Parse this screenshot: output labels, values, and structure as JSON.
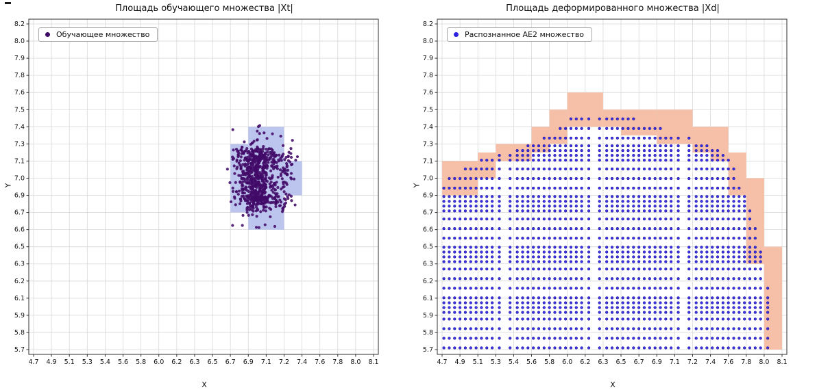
{
  "figure": {
    "background": "#ffffff"
  },
  "chart_data": [
    {
      "type": "scatter",
      "title": "Площадь обучающего множества |Xt|",
      "xlabel": "X",
      "ylabel": "Y",
      "grid": true,
      "legend": {
        "label": "Обучающее множество",
        "position": "upper left"
      },
      "colors": {
        "points": "#420a68",
        "cells": "#bcc5ee",
        "grid": "#d8d8d8",
        "axis": "#2f2f2f"
      },
      "xlim": [
        4.7,
        8.1
      ],
      "ylim": [
        5.7,
        8.2
      ],
      "x_tick_labels": [
        "4.7",
        "4.9",
        "5.1",
        "5.3",
        "5.4",
        "5.6",
        "5.8",
        "6.0",
        "6.2",
        "6.3",
        "6.5",
        "6.7",
        "6.9",
        "7.1",
        "7.2",
        "7.4",
        "7.6",
        "7.8",
        "8.0",
        "8.1"
      ],
      "y_tick_labels": [
        "5.7",
        "5.8",
        "5.9",
        "6.1",
        "6.2",
        "6.3",
        "6.5",
        "6.6",
        "6.7",
        "6.9",
        "7.0",
        "7.1",
        "7.3",
        "7.4",
        "7.5",
        "7.6",
        "7.8",
        "7.9",
        "8.0",
        "8.2"
      ],
      "highlight_cells": [
        [
          6.7,
          6.7,
          6.9,
          7.3
        ],
        [
          6.9,
          6.6,
          7.2,
          7.4
        ],
        [
          7.2,
          6.9,
          7.4,
          7.1
        ]
      ],
      "cluster": {
        "count": 800,
        "center": [
          7.01,
          7.0
        ],
        "std": [
          0.115,
          0.14
        ],
        "seed": 12,
        "point_radius": 2.1
      }
    },
    {
      "type": "scatter",
      "title": "Площадь деформированного множества |Xd|",
      "xlabel": "X",
      "ylabel": "Y",
      "grid": true,
      "legend": {
        "label": "Распознанное AE2 множество",
        "position": "upper left"
      },
      "colors": {
        "points": "#2c22e0",
        "points_edge": "#14129a",
        "cells": "#f6c0a8",
        "grid": "#d8d8d8",
        "axis": "#2f2f2f"
      },
      "xlim": [
        4.7,
        8.1
      ],
      "ylim": [
        5.7,
        8.2
      ],
      "x_tick_labels": [
        "4.7",
        "4.9",
        "5.1",
        "5.3",
        "5.4",
        "5.6",
        "5.8",
        "6.0",
        "6.2",
        "6.3",
        "6.5",
        "6.7",
        "6.9",
        "7.1",
        "7.2",
        "7.4",
        "7.6",
        "7.8",
        "8.0",
        "8.1"
      ],
      "y_tick_labels": [
        "5.7",
        "5.8",
        "5.9",
        "6.1",
        "6.2",
        "6.3",
        "6.5",
        "6.6",
        "6.7",
        "6.9",
        "7.0",
        "7.1",
        "7.3",
        "7.4",
        "7.5",
        "7.6",
        "7.8",
        "7.9",
        "8.0",
        "8.2"
      ],
      "highlight_cells": [
        [
          4.7,
          6.9,
          5.1,
          7.1
        ],
        [
          5.1,
          7.0,
          5.3,
          7.2
        ],
        [
          5.3,
          7.1,
          5.6,
          7.3
        ],
        [
          5.6,
          7.2,
          5.8,
          7.4
        ],
        [
          5.8,
          7.3,
          6.0,
          7.5
        ],
        [
          6.0,
          7.4,
          6.3,
          7.6
        ],
        [
          6.3,
          7.4,
          6.5,
          7.5
        ],
        [
          6.5,
          7.35,
          6.9,
          7.5
        ],
        [
          6.9,
          7.3,
          7.2,
          7.5
        ],
        [
          7.2,
          7.2,
          7.4,
          7.4
        ],
        [
          7.4,
          7.1,
          7.6,
          7.4
        ],
        [
          7.6,
          6.9,
          7.8,
          7.2
        ],
        [
          7.8,
          6.3,
          8.0,
          7.0
        ],
        [
          8.0,
          5.7,
          8.1,
          6.5
        ]
      ],
      "grid_points": {
        "x_start": 4.72,
        "x_end": 8.06,
        "dx": 0.06,
        "y_start": 5.71,
        "dy": 0.056,
        "point_radius": 1.9,
        "envelope": [
          [
            4.7,
            6.97
          ],
          [
            4.9,
            7.04
          ],
          [
            5.1,
            7.1
          ],
          [
            5.3,
            7.17
          ],
          [
            5.45,
            7.23
          ],
          [
            5.6,
            7.3
          ],
          [
            5.8,
            7.37
          ],
          [
            6.0,
            7.43
          ],
          [
            6.1,
            7.47
          ],
          [
            6.15,
            7.5
          ],
          [
            6.45,
            7.5
          ],
          [
            6.6,
            7.46
          ],
          [
            6.8,
            7.42
          ],
          [
            7.0,
            7.38
          ],
          [
            7.2,
            7.33
          ],
          [
            7.4,
            7.27
          ],
          [
            7.55,
            7.18
          ],
          [
            7.7,
            7.02
          ],
          [
            7.8,
            6.87
          ],
          [
            7.9,
            6.62
          ],
          [
            7.98,
            6.38
          ],
          [
            8.03,
            6.15
          ],
          [
            8.06,
            5.95
          ],
          [
            8.07,
            5.7
          ]
        ]
      }
    }
  ]
}
